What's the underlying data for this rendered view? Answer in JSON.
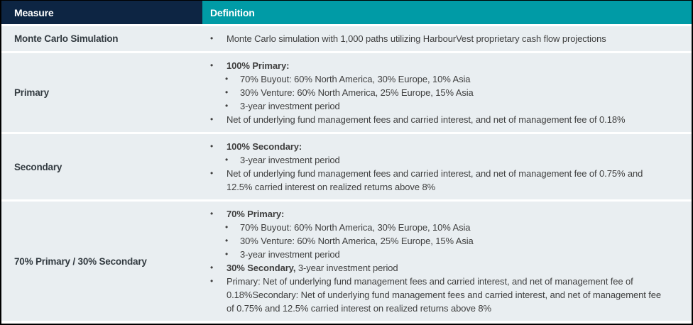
{
  "colors": {
    "header_measure_bg": "#0d2543",
    "header_definition_bg": "#009ba6",
    "row_bg": "#e9eef1",
    "row_separator": "#ffffff",
    "body_text": "#404040",
    "header_text": "#ffffff",
    "outer_border": "#000000"
  },
  "icons": {
    "bullet": "•"
  },
  "table": {
    "header": {
      "measure": "Measure",
      "definition": "Definition"
    },
    "rows": [
      {
        "measure": "Monte Carlo Simulation",
        "items": [
          {
            "level": 1,
            "bold": "",
            "text": "Monte Carlo simulation with 1,000 paths utilizing HarbourVest proprietary cash flow projections"
          }
        ]
      },
      {
        "measure": "Primary",
        "items": [
          {
            "level": 1,
            "bold": "100% Primary:",
            "text": ""
          },
          {
            "level": 2,
            "bold": "",
            "text": "70% Buyout: 60% North America, 30% Europe, 10% Asia"
          },
          {
            "level": 2,
            "bold": "",
            "text": "30% Venture: 60% North America, 25% Europe, 15% Asia"
          },
          {
            "level": 2,
            "bold": "",
            "text": "3-year investment period"
          },
          {
            "level": 1,
            "bold": "",
            "text": "Net of underlying fund management fees and carried interest, and net of management fee of 0.18%"
          }
        ]
      },
      {
        "measure": "Secondary",
        "items": [
          {
            "level": 1,
            "bold": "100% Secondary:",
            "text": ""
          },
          {
            "level": 2,
            "bold": "",
            "text": "3-year investment period"
          },
          {
            "level": 1,
            "bold": "",
            "text": "Net of underlying fund management fees and carried interest, and net of management fee of 0.75% and 12.5% carried interest on realized returns above 8%"
          }
        ]
      },
      {
        "measure": "70% Primary / 30% Secondary",
        "items": [
          {
            "level": 1,
            "bold": "70% Primary:",
            "text": ""
          },
          {
            "level": 2,
            "bold": "",
            "text": "70% Buyout: 60% North America, 30% Europe, 10% Asia"
          },
          {
            "level": 2,
            "bold": "",
            "text": "30% Venture: 60% North America, 25% Europe, 15% Asia"
          },
          {
            "level": 2,
            "bold": "",
            "text": "3-year investment period"
          },
          {
            "level": 1,
            "bold": "30% Secondary,",
            "text": " 3-year investment period"
          },
          {
            "level": 1,
            "bold": "",
            "text": "Primary: Net of underlying fund management fees and carried interest, and net of management fee of 0.18%Secondary: Net of underlying fund management fees and carried interest, and net of management fee of 0.75% and 12.5% carried interest on realized returns above 8%"
          }
        ]
      }
    ]
  }
}
